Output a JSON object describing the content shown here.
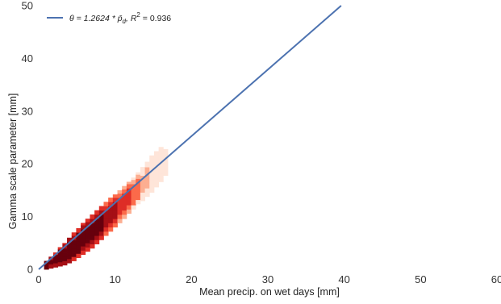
{
  "chart_data": {
    "type": "heatmap",
    "title": "",
    "xlabel": "Mean precip. on wet days [mm]",
    "ylabel": "Gamma scale parameter [mm]",
    "xlim": [
      0,
      60
    ],
    "ylim": [
      0,
      50
    ],
    "xticks": [
      0,
      10,
      20,
      30,
      40,
      50,
      60
    ],
    "yticks": [
      0,
      10,
      20,
      30,
      40,
      50
    ],
    "grid": false,
    "legend_position": "top-left",
    "colormap": [
      "#fee5d9",
      "#fcae91",
      "#fb6a4a",
      "#de2d26",
      "#a50f15",
      "#67000d"
    ],
    "density": {
      "bin_width": 0.6,
      "bins": [
        {
          "x": 1.0,
          "y_range": [
            0.0,
            1.6
          ],
          "level": 5
        },
        {
          "x": 1.6,
          "y_range": [
            0.2,
            2.4
          ],
          "level": 5
        },
        {
          "x": 2.2,
          "y_range": [
            0.4,
            3.2
          ],
          "level": 5
        },
        {
          "x": 2.8,
          "y_range": [
            0.6,
            4.2
          ],
          "level": 5
        },
        {
          "x": 3.4,
          "y_range": [
            0.8,
            5.0
          ],
          "level": 5
        },
        {
          "x": 4.0,
          "y_range": [
            1.2,
            6.0
          ],
          "level": 5
        },
        {
          "x": 4.6,
          "y_range": [
            1.6,
            7.0
          ],
          "level": 5
        },
        {
          "x": 5.2,
          "y_range": [
            2.2,
            7.8
          ],
          "level": 5
        },
        {
          "x": 5.8,
          "y_range": [
            2.8,
            8.8
          ],
          "level": 5
        },
        {
          "x": 6.4,
          "y_range": [
            3.4,
            9.6
          ],
          "level": 5
        },
        {
          "x": 7.0,
          "y_range": [
            4.0,
            10.4
          ],
          "level": 5
        },
        {
          "x": 7.6,
          "y_range": [
            4.8,
            11.2
          ],
          "level": 5
        },
        {
          "x": 8.2,
          "y_range": [
            5.6,
            12.0
          ],
          "level": 5
        },
        {
          "x": 8.8,
          "y_range": [
            6.4,
            12.8
          ],
          "level": 4
        },
        {
          "x": 9.4,
          "y_range": [
            7.2,
            13.6
          ],
          "level": 4
        },
        {
          "x": 10.0,
          "y_range": [
            8.0,
            14.2
          ],
          "level": 4
        },
        {
          "x": 10.6,
          "y_range": [
            8.8,
            15.0
          ],
          "level": 3
        },
        {
          "x": 11.2,
          "y_range": [
            9.6,
            15.8
          ],
          "level": 3
        },
        {
          "x": 11.8,
          "y_range": [
            10.6,
            16.6
          ],
          "level": 3
        },
        {
          "x": 12.4,
          "y_range": [
            11.4,
            17.4
          ],
          "level": 2
        },
        {
          "x": 13.0,
          "y_range": [
            12.4,
            18.4
          ],
          "level": 2
        },
        {
          "x": 13.6,
          "y_range": [
            13.0,
            19.4
          ],
          "level": 1
        },
        {
          "x": 14.2,
          "y_range": [
            13.8,
            20.4
          ],
          "level": 1
        },
        {
          "x": 14.8,
          "y_range": [
            14.6,
            21.6
          ],
          "level": 0
        },
        {
          "x": 15.4,
          "y_range": [
            15.6,
            22.4
          ],
          "level": 0
        },
        {
          "x": 16.0,
          "y_range": [
            16.6,
            23.2
          ],
          "level": 0
        },
        {
          "x": 16.6,
          "y_range": [
            17.8,
            22.8
          ],
          "level": 0
        }
      ]
    },
    "series": [
      {
        "name": "θ = 1.2624 * p̄_d, R² = 0.936",
        "type": "line",
        "color": "#4c72b0",
        "x": [
          0,
          39.6
        ],
        "y": [
          0,
          50
        ]
      }
    ],
    "legend": {
      "prefix": "θ = 1.2624 * ",
      "p_symbol": "p̄",
      "p_subscript": "d",
      "mid": ", R",
      "r_superscript": "2",
      "suffix": " = 0.936"
    }
  }
}
